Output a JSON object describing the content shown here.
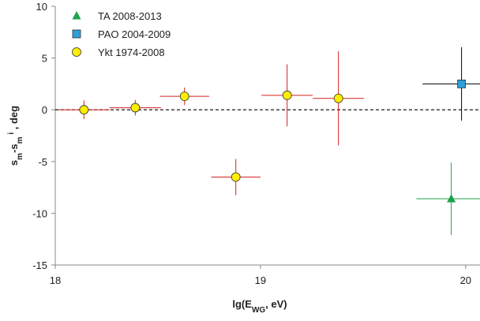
{
  "chart_data": {
    "type": "errorbar-scatter",
    "xlim": [
      18,
      20.07
    ],
    "xticks": [
      18,
      19,
      20
    ],
    "ylim": [
      -15,
      10
    ],
    "yticks": [
      -15,
      -10,
      -5,
      0,
      5,
      10
    ],
    "reference_line": 0,
    "xlabel_parts": [
      {
        "text": "lg(E"
      },
      {
        "text": "WG",
        "sub": true
      },
      {
        "text": ", eV)"
      }
    ],
    "ylabel_parts": [
      {
        "text": "s"
      },
      {
        "text": "m",
        "sub": true
      },
      {
        "text": "-s"
      },
      {
        "text": "m",
        "sub": true
      },
      {
        "text": " i",
        "sup": true
      },
      {
        "text": " , deg"
      }
    ],
    "legend": "upper left",
    "series": [
      {
        "name": "TA 2008-2013",
        "marker": "triangle",
        "color": "#1aa34a",
        "line_color": "#1aa34a",
        "x": [
          19.93
        ],
        "values": [
          -8.6
        ],
        "xerr": [
          0.17
        ],
        "yerr": [
          3.5
        ]
      },
      {
        "name": "PAO 2004-2009",
        "marker": "square",
        "color": "#2e9fd8",
        "line_color": "#000000",
        "x": [
          19.98
        ],
        "values": [
          2.5
        ],
        "xerr": [
          0.19
        ],
        "yerr": [
          3.55
        ]
      },
      {
        "name": "Ykt 1974-2008",
        "marker": "circle",
        "color": "#ffee00",
        "line_color": "#d42020",
        "x": [
          18.14,
          18.39,
          18.63,
          18.88,
          19.13,
          19.38
        ],
        "values": [
          0.0,
          0.2,
          1.3,
          -6.5,
          1.4,
          1.1
        ],
        "xerr": [
          0.125,
          0.125,
          0.12,
          0.12,
          0.125,
          0.125
        ],
        "yerr": [
          0.9,
          0.75,
          0.85,
          1.75,
          3.0,
          4.55
        ]
      }
    ]
  }
}
